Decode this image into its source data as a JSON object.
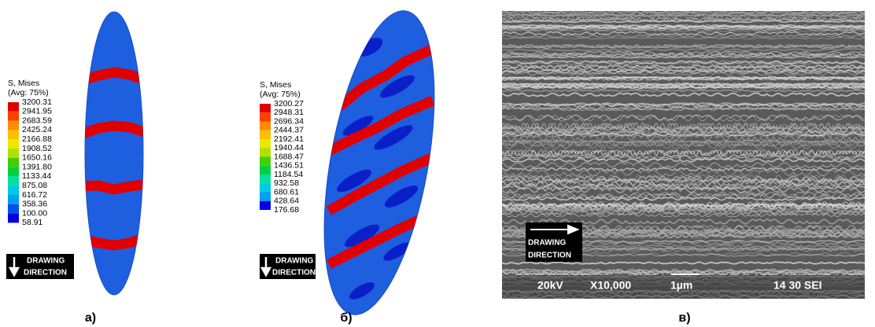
{
  "panels": [
    {
      "legend": {
        "title": "S, Mises",
        "subtitle": "(Avg: 75%)",
        "labels": [
          "3200.31",
          "2941.95",
          "2683.59",
          "2425.24",
          "2166.88",
          "1908.52",
          "1650.16",
          "1391.80",
          "1133.44",
          "875.08",
          "616.72",
          "358.36",
          "100.00",
          "58.91"
        ]
      },
      "direction": [
        "DRAWING",
        "DIRECTION"
      ],
      "label": "а)"
    },
    {
      "legend": {
        "title": "S, Mises",
        "subtitle": "(Avg: 75%)",
        "labels": [
          "3200.27",
          "2948.31",
          "2696.34",
          "2444.37",
          "2192.41",
          "1940.44",
          "1688.47",
          "1436.51",
          "1184.54",
          "932.58",
          "680.61",
          "428.64",
          "176.68"
        ]
      },
      "direction": [
        "DRAWING",
        "DIRECTION"
      ],
      "label": "б)"
    },
    {
      "direction": [
        "DRAWING",
        "DIRECTION"
      ],
      "info": [
        "20kV",
        "X10,000",
        "1µm",
        "14 30 SEI"
      ],
      "label": "в)"
    }
  ]
}
